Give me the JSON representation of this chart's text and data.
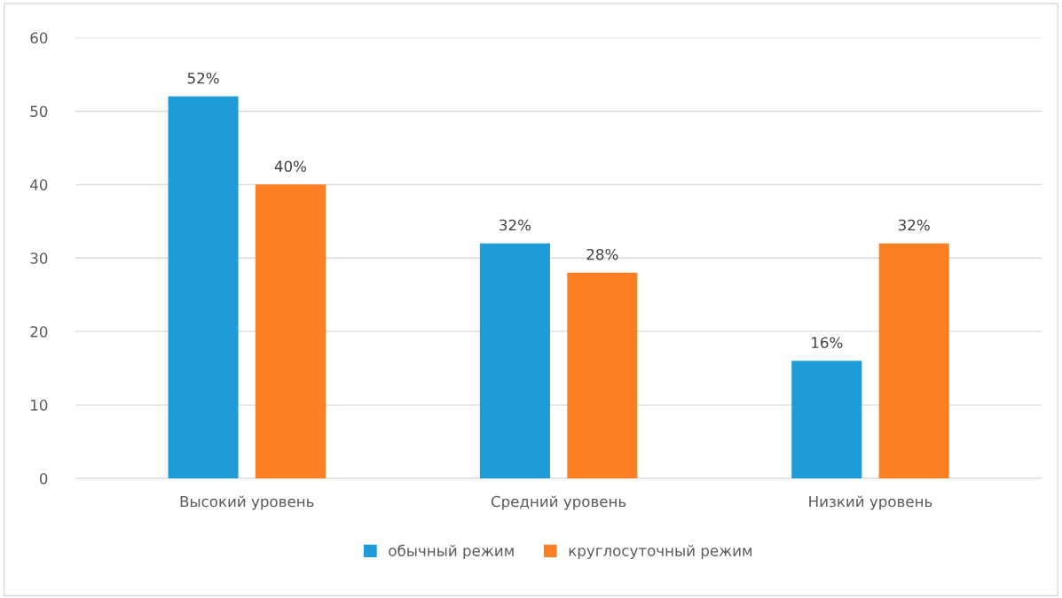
{
  "chart_data": {
    "type": "bar",
    "categories": [
      "Высокий уровень",
      "Средний уровень",
      "Низкий уровень"
    ],
    "series": [
      {
        "name": "обычный режим",
        "color": "#1f9bd8",
        "values": [
          52,
          32,
          16
        ],
        "value_labels": [
          "52%",
          "32%",
          "16%"
        ]
      },
      {
        "name": "круглосуточный режим",
        "color": "#fd7f23",
        "values": [
          40,
          28,
          32
        ],
        "value_labels": [
          "40%",
          "28%",
          "32%"
        ]
      }
    ],
    "ylim": [
      0,
      60
    ],
    "yticks": [
      0,
      10,
      20,
      30,
      40,
      50,
      60
    ],
    "grid": "y",
    "legend": "bottom"
  }
}
